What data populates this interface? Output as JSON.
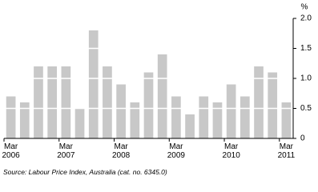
{
  "chart_data": {
    "type": "bar",
    "unit_label": "%",
    "source": "Source: Labour Price Index, Australia (cat. no. 6345.0)",
    "categories": [
      "Mar\n2006",
      null,
      null,
      null,
      "Mar\n2007",
      null,
      null,
      null,
      "Mar\n2008",
      null,
      null,
      null,
      "Mar\n2009",
      null,
      null,
      null,
      "Mar\n2010",
      null,
      null,
      null,
      "Mar\n2011"
    ],
    "values": [
      0.7,
      0.6,
      1.2,
      1.2,
      1.2,
      0.5,
      1.8,
      1.2,
      0.9,
      0.6,
      1.1,
      1.4,
      0.7,
      0.4,
      0.7,
      0.6,
      0.9,
      0.7,
      1.2,
      1.1,
      0.6
    ],
    "color": "#c8c8c8",
    "ylim": [
      0,
      2
    ],
    "yticks": [
      0,
      0.5,
      {
        "value": 1,
        "label": "1.0"
      },
      1.5,
      {
        "value": 2,
        "label": "2.0"
      }
    ],
    "grid": true,
    "grid_color": "#ffffff"
  }
}
